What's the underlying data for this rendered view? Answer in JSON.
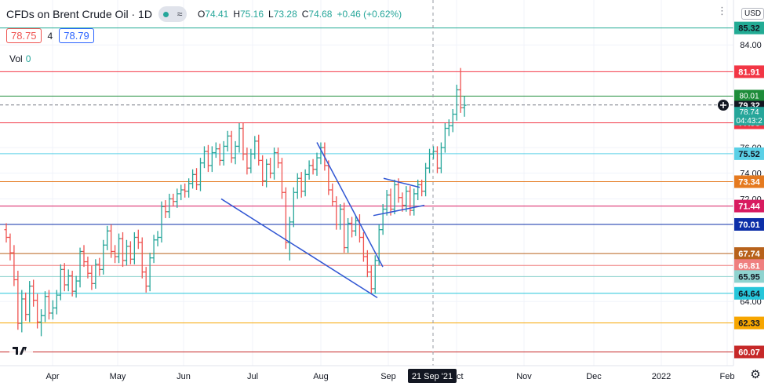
{
  "legend": {
    "title": "CFDs on Brent Crude Oil · 1D",
    "indicator_label": "≈",
    "open_label": "O",
    "open": "74.41",
    "high_label": "H",
    "high": "75.16",
    "low_label": "L",
    "low": "73.28",
    "close_label": "C",
    "close": "74.68",
    "change": "+0.46 (+0.62%)"
  },
  "quote": {
    "sell": "78.75",
    "spread": "4",
    "buy": "78.79"
  },
  "volume": {
    "label": "Vol",
    "value": "0"
  },
  "currency": "USD",
  "colors": {
    "up": "#26a69a",
    "down": "#ef5350",
    "trendline": "#3056d3"
  },
  "chart_data": {
    "type": "ohlc",
    "ylim": [
      59,
      87.5
    ],
    "y_ticks": [
      "84.00",
      "76.00",
      "74.00",
      "72.00",
      "64.00"
    ],
    "x_tick_labels": [
      "Apr",
      "May",
      "Jun",
      "Jul",
      "Aug",
      "Sep",
      "Oct",
      "Nov",
      "Dec",
      "2022",
      "Feb"
    ],
    "crosshair_x_label": "21 Sep '21",
    "last_price": {
      "value": "79.32",
      "countdown": "04:43:2"
    },
    "horizontal_levels": [
      {
        "value": 85.32,
        "color": "#22ab94"
      },
      {
        "value": 81.91,
        "color": "#f23645"
      },
      {
        "value": 80.01,
        "color": "#1e8c3a"
      },
      {
        "value": 79.32,
        "color": "#787b86"
      },
      {
        "value": 77.93,
        "color": "#f23645"
      },
      {
        "value": 75.52,
        "color": "#5ad0e6"
      },
      {
        "value": 73.34,
        "color": "#e57a1f"
      },
      {
        "value": 71.44,
        "color": "#d81b60"
      },
      {
        "value": 70.01,
        "color": "#0d2fa8"
      },
      {
        "value": 67.74,
        "color": "#b8621b"
      },
      {
        "value": 66.81,
        "color": "#ef7f7f"
      },
      {
        "value": 65.95,
        "color": "#8fd3cf"
      },
      {
        "value": 64.64,
        "color": "#26c6da"
      },
      {
        "value": 62.33,
        "color": "#f7a600"
      },
      {
        "value": 60.07,
        "color": "#c62828"
      }
    ],
    "stacked_labels": [
      {
        "text": "80.01",
        "value": 80.01,
        "color": "#1e8c3a"
      },
      {
        "text": "78.74",
        "value": 78.74,
        "color": "#26a69a"
      }
    ],
    "trendlines": [
      {
        "x1": "Jul 31",
        "y1": 76.4,
        "x2": "Aug 30",
        "y2": 66.7
      },
      {
        "x1": "Jun 19",
        "y1": 72.0,
        "x2": "Aug 27",
        "y2": 64.3
      },
      {
        "x1": "Sep 6",
        "y1": 73.6,
        "x2": "Sep 24",
        "y2": 72.9
      },
      {
        "x1": "Sep 3",
        "y1": 70.7,
        "x2": "Oct 1",
        "y2": 71.5
      }
    ],
    "ohlc_series": [
      [
        69.6,
        70.1,
        68.6,
        69.0
      ],
      [
        69.0,
        69.3,
        67.2,
        67.8
      ],
      [
        67.8,
        68.4,
        65.2,
        65.7
      ],
      [
        65.7,
        66.4,
        61.8,
        62.3
      ],
      [
        62.3,
        64.9,
        61.6,
        64.2
      ],
      [
        64.2,
        64.7,
        62.5,
        63.0
      ],
      [
        63.0,
        65.6,
        62.4,
        65.2
      ],
      [
        65.2,
        65.7,
        63.6,
        64.1
      ],
      [
        64.1,
        64.6,
        61.9,
        62.4
      ],
      [
        62.4,
        63.4,
        61.3,
        62.9
      ],
      [
        62.9,
        64.8,
        62.4,
        64.4
      ],
      [
        64.4,
        64.9,
        62.6,
        63.1
      ],
      [
        63.1,
        64.1,
        62.6,
        63.5
      ],
      [
        63.5,
        64.9,
        63.0,
        64.5
      ],
      [
        64.5,
        66.9,
        64.1,
        66.5
      ],
      [
        66.5,
        67.0,
        64.8,
        65.3
      ],
      [
        65.3,
        66.5,
        64.8,
        66.0
      ],
      [
        66.0,
        66.4,
        64.4,
        64.8
      ],
      [
        64.8,
        66.0,
        64.3,
        65.6
      ],
      [
        65.6,
        68.2,
        65.1,
        67.9
      ],
      [
        67.9,
        68.4,
        66.7,
        67.1
      ],
      [
        67.1,
        67.5,
        65.8,
        66.2
      ],
      [
        66.2,
        66.8,
        64.9,
        65.4
      ],
      [
        65.4,
        67.3,
        65.0,
        66.9
      ],
      [
        66.9,
        67.4,
        66.0,
        66.5
      ],
      [
        66.5,
        68.8,
        66.1,
        68.4
      ],
      [
        68.4,
        69.9,
        68.0,
        69.5
      ],
      [
        69.5,
        70.0,
        67.4,
        67.9
      ],
      [
        67.9,
        68.4,
        67.0,
        67.5
      ],
      [
        67.5,
        69.3,
        67.0,
        68.9
      ],
      [
        68.9,
        69.4,
        66.7,
        67.2
      ],
      [
        67.2,
        68.8,
        66.8,
        68.3
      ],
      [
        68.3,
        68.7,
        66.9,
        67.3
      ],
      [
        67.3,
        69.4,
        66.9,
        69.0
      ],
      [
        69.0,
        69.6,
        68.1,
        68.6
      ],
      [
        68.6,
        69.0,
        65.8,
        66.3
      ],
      [
        66.3,
        66.7,
        64.7,
        65.2
      ],
      [
        65.2,
        67.8,
        64.8,
        67.4
      ],
      [
        67.4,
        69.2,
        67.0,
        68.8
      ],
      [
        68.8,
        69.5,
        68.3,
        69.0
      ],
      [
        69.0,
        71.8,
        68.6,
        71.4
      ],
      [
        71.4,
        71.9,
        70.5,
        71.0
      ],
      [
        71.0,
        72.4,
        70.5,
        72.0
      ],
      [
        72.0,
        72.4,
        71.4,
        71.8
      ],
      [
        71.8,
        72.8,
        71.3,
        72.4
      ],
      [
        72.4,
        73.1,
        71.9,
        72.7
      ],
      [
        72.7,
        73.2,
        72.1,
        72.6
      ],
      [
        72.6,
        73.6,
        72.1,
        73.2
      ],
      [
        73.2,
        74.3,
        72.8,
        73.9
      ],
      [
        73.9,
        74.4,
        72.7,
        73.1
      ],
      [
        73.1,
        75.2,
        72.6,
        74.8
      ],
      [
        74.8,
        76.1,
        74.4,
        75.7
      ],
      [
        75.7,
        76.2,
        74.1,
        74.6
      ],
      [
        74.6,
        76.1,
        74.1,
        75.6
      ],
      [
        75.6,
        76.4,
        75.2,
        75.9
      ],
      [
        75.9,
        76.3,
        74.6,
        75.0
      ],
      [
        75.0,
        76.5,
        74.6,
        76.1
      ],
      [
        76.1,
        77.3,
        75.7,
        76.9
      ],
      [
        76.9,
        77.3,
        74.8,
        75.2
      ],
      [
        75.2,
        76.5,
        74.7,
        76.1
      ],
      [
        76.1,
        77.9,
        75.6,
        77.5
      ],
      [
        77.5,
        77.9,
        75.0,
        75.5
      ],
      [
        75.5,
        76.0,
        73.9,
        74.4
      ],
      [
        74.4,
        75.9,
        74.0,
        75.5
      ],
      [
        75.5,
        76.9,
        75.1,
        76.5
      ],
      [
        76.5,
        77.0,
        74.6,
        75.0
      ],
      [
        75.0,
        75.4,
        73.0,
        73.4
      ],
      [
        73.4,
        75.1,
        72.9,
        74.7
      ],
      [
        74.7,
        75.2,
        73.6,
        74.0
      ],
      [
        74.0,
        76.0,
        73.5,
        75.6
      ],
      [
        75.6,
        76.0,
        74.4,
        74.8
      ],
      [
        74.8,
        75.2,
        72.0,
        72.5
      ],
      [
        72.5,
        72.9,
        68.1,
        68.6
      ],
      [
        68.6,
        70.6,
        67.2,
        70.2
      ],
      [
        70.2,
        72.9,
        69.8,
        72.5
      ],
      [
        72.5,
        74.0,
        72.0,
        73.6
      ],
      [
        73.6,
        74.1,
        72.1,
        72.6
      ],
      [
        72.6,
        74.3,
        72.2,
        73.9
      ],
      [
        73.9,
        75.0,
        73.5,
        74.6
      ],
      [
        74.6,
        75.1,
        73.9,
        74.3
      ],
      [
        74.3,
        75.6,
        73.8,
        75.2
      ],
      [
        75.2,
        76.4,
        74.7,
        76.0
      ],
      [
        76.0,
        76.4,
        74.2,
        74.6
      ],
      [
        74.6,
        75.0,
        72.3,
        72.7
      ],
      [
        72.7,
        73.2,
        71.4,
        71.8
      ],
      [
        71.8,
        72.2,
        69.6,
        70.0
      ],
      [
        70.0,
        71.6,
        69.6,
        71.2
      ],
      [
        71.2,
        71.7,
        67.8,
        68.2
      ],
      [
        68.2,
        70.5,
        67.8,
        70.1
      ],
      [
        70.1,
        70.6,
        69.0,
        69.5
      ],
      [
        69.5,
        70.7,
        69.1,
        70.3
      ],
      [
        70.3,
        70.8,
        68.6,
        69.0
      ],
      [
        69.0,
        69.4,
        67.1,
        67.5
      ],
      [
        67.5,
        68.0,
        65.9,
        66.3
      ],
      [
        66.3,
        66.8,
        64.6,
        65.0
      ],
      [
        65.0,
        67.6,
        64.6,
        67.2
      ],
      [
        67.2,
        70.0,
        66.8,
        69.6
      ],
      [
        69.6,
        71.6,
        69.2,
        71.2
      ],
      [
        71.2,
        72.7,
        70.7,
        72.3
      ],
      [
        72.3,
        72.8,
        70.7,
        71.2
      ],
      [
        71.2,
        73.5,
        70.8,
        73.1
      ],
      [
        73.1,
        73.6,
        71.7,
        72.1
      ],
      [
        72.1,
        72.5,
        71.0,
        71.5
      ],
      [
        71.5,
        73.0,
        71.0,
        72.6
      ],
      [
        72.6,
        73.0,
        70.7,
        71.1
      ],
      [
        71.1,
        72.8,
        70.7,
        72.4
      ],
      [
        72.4,
        73.5,
        71.9,
        73.1
      ],
      [
        73.1,
        73.5,
        72.2,
        72.6
      ],
      [
        72.6,
        74.8,
        72.2,
        74.4
      ],
      [
        74.4,
        75.9,
        74.0,
        75.5
      ],
      [
        75.5,
        76.1,
        75.1,
        75.7
      ],
      [
        75.7,
        76.1,
        74.0,
        74.4
      ],
      [
        74.4,
        76.4,
        74.0,
        76.0
      ],
      [
        76.0,
        77.9,
        75.6,
        77.5
      ],
      [
        77.5,
        78.2,
        76.9,
        77.7
      ],
      [
        77.7,
        79.0,
        77.2,
        78.6
      ],
      [
        78.6,
        80.9,
        78.1,
        80.5
      ],
      [
        80.5,
        82.2,
        78.7,
        79.1
      ],
      [
        79.1,
        80.0,
        78.4,
        79.3
      ]
    ]
  }
}
